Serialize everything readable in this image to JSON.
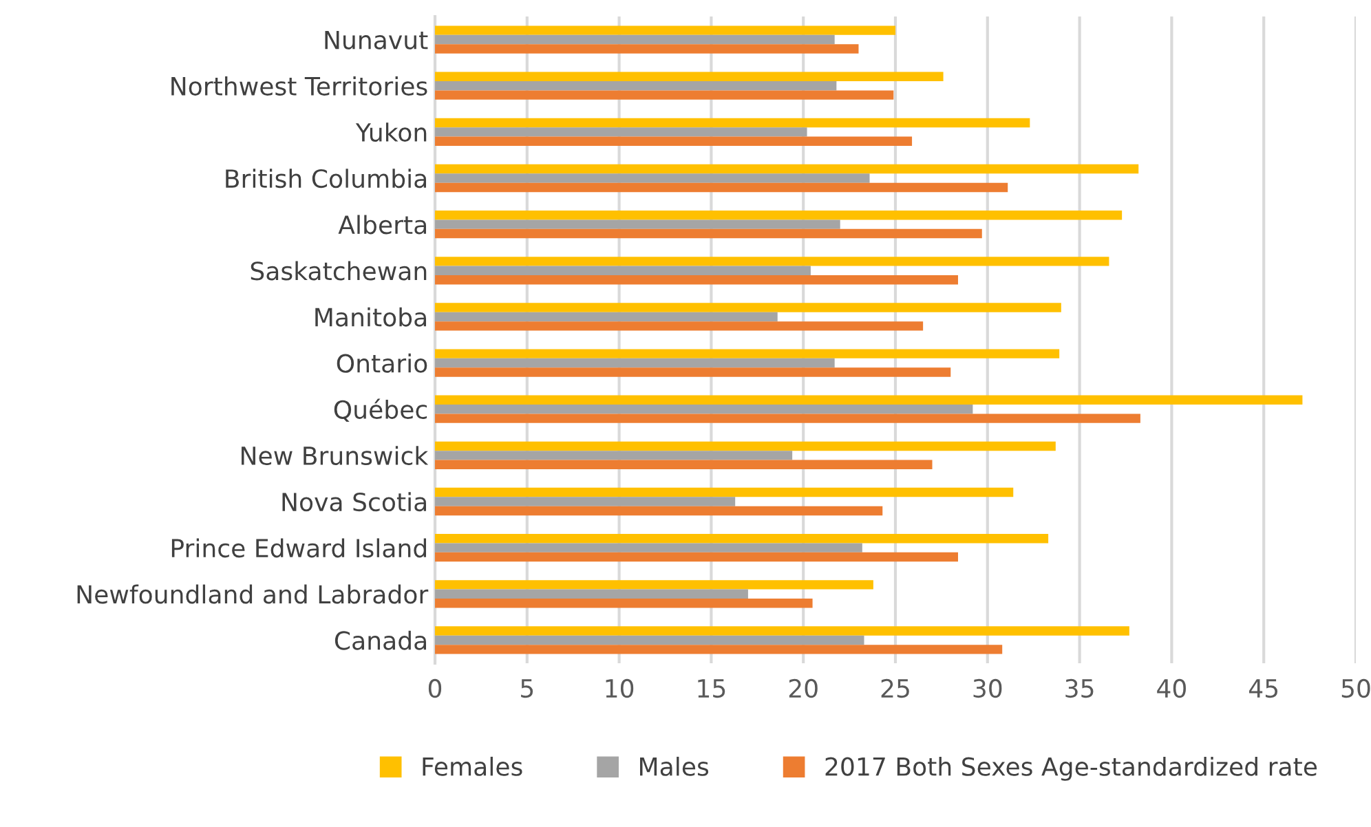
{
  "chart_data": {
    "type": "bar",
    "orientation": "horizontal",
    "categories": [
      "Nunavut",
      "Northwest Territories",
      "Yukon",
      "British Columbia",
      "Alberta",
      "Saskatchewan",
      "Manitoba",
      "Ontario",
      "Québec",
      "New Brunswick",
      "Nova Scotia",
      "Prince Edward Island",
      "Newfoundland and Labrador",
      "Canada"
    ],
    "series": [
      {
        "name": "Females",
        "color": "#ffc000",
        "values": [
          25.0,
          27.6,
          32.3,
          38.2,
          37.3,
          36.6,
          34.0,
          33.9,
          47.1,
          33.7,
          31.4,
          33.3,
          23.8,
          37.7
        ]
      },
      {
        "name": "Males",
        "color": "#a5a5a5",
        "values": [
          21.7,
          21.8,
          20.2,
          23.6,
          22.0,
          20.4,
          18.6,
          21.7,
          29.2,
          19.4,
          16.3,
          23.2,
          17.0,
          23.3
        ]
      },
      {
        "name": "2017 Both Sexes Age-standardized rate",
        "color": "#ed7d31",
        "values": [
          23.0,
          24.9,
          25.9,
          31.1,
          29.7,
          28.4,
          26.5,
          28.0,
          38.3,
          27.0,
          24.3,
          28.4,
          20.5,
          30.8
        ]
      }
    ],
    "xlim": [
      0,
      50
    ],
    "xticks": [
      0,
      5,
      10,
      15,
      20,
      25,
      30,
      35,
      40,
      45,
      50
    ],
    "grid": "x",
    "legend": "bottom"
  }
}
